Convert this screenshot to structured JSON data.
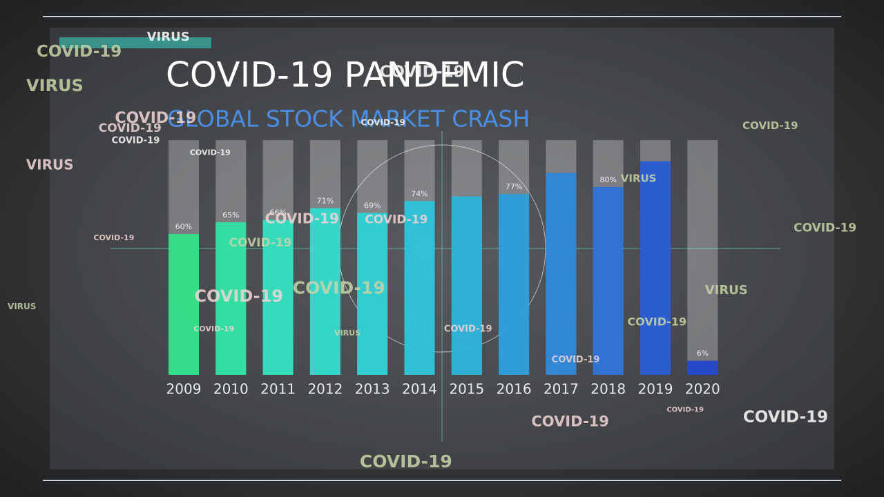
{
  "chart_data": {
    "type": "bar",
    "title": "COVID-19 PANDEMIC",
    "subtitle": "GLOBAL STOCK MARKET CRASH",
    "categories": [
      "2009",
      "2010",
      "2011",
      "2012",
      "2013",
      "2014",
      "2015",
      "2016",
      "2017",
      "2018",
      "2019",
      "2020"
    ],
    "values": [
      60,
      65,
      66,
      71,
      69,
      74,
      76,
      77,
      86,
      80,
      91,
      6
    ],
    "value_labels": [
      "60%",
      "65%",
      "66%",
      "71%",
      "69%",
      "74%",
      null,
      "77%",
      null,
      "80%",
      null,
      "6%"
    ],
    "colors": [
      "#2fe58a",
      "#2ee6a6",
      "#2fe3c0",
      "#2fdccf",
      "#2cd3d6",
      "#2bc6dc",
      "#2ab4de",
      "#2a9fdd",
      "#2a88db",
      "#2a72d9",
      "#255ad6",
      "#1f44cf"
    ],
    "ylim": [
      0,
      100
    ],
    "overlay_words": [
      "COVID-19",
      "VIRUS",
      "COVID-19",
      "COVID-19",
      "VIRUS",
      "COVID-19",
      "COVID-19",
      "COVID-19",
      "VIRUS",
      "COVID-19",
      "COVID-19",
      "COVID-19",
      "VIRUS",
      "COVID-19",
      "COVID-19",
      "COVID-19",
      "COVID-19",
      "VIRUS",
      "COVID-19",
      "COVID-19",
      "COVID-19",
      "COVID-19",
      "VIRUS",
      "COVID-19",
      "COVID-19",
      "COVID-19",
      "COVID-19",
      "COVID-19",
      "VIRUS",
      "COVID-19"
    ]
  }
}
